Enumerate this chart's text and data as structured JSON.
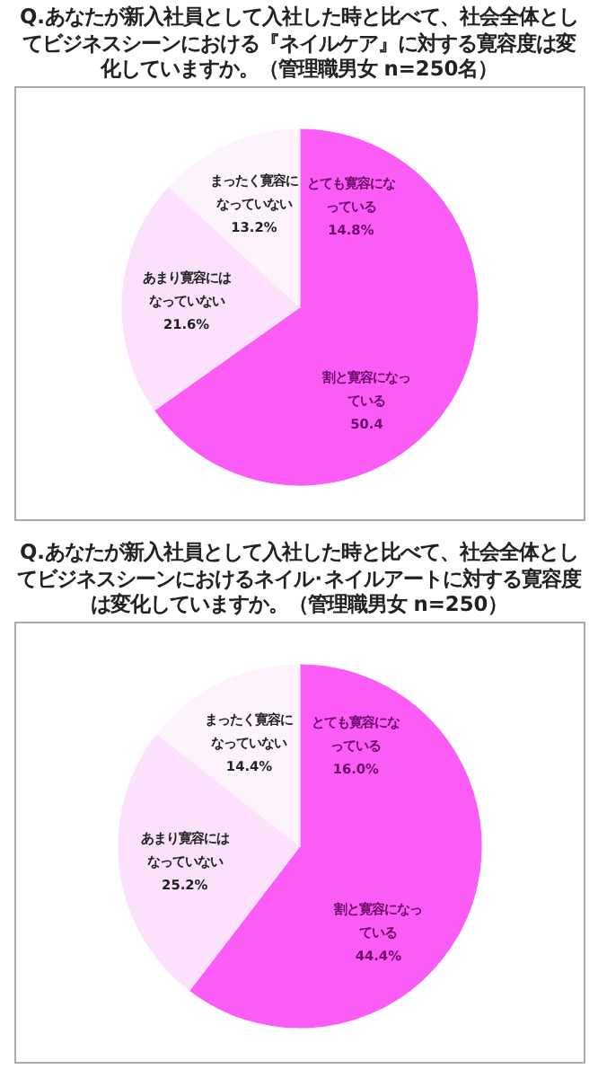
{
  "chart_data": [
    {
      "type": "pie",
      "title": "Q.あなたが新入社員として入社した時と比べて、社会全体としてビジネスシーンにおける『ネイルケア』に対する寛容度は変化していますか。（管理職男女 n=250名）",
      "categories": [
        "とても寛容になっている",
        "割と寛容になっている",
        "あまり寛容にはなっていない",
        "まったく寛容になっていない"
      ],
      "values": [
        14.8,
        50.4,
        21.6,
        13.2
      ],
      "value_labels": [
        "14.8%",
        "50.4",
        "21.6%",
        "13.2%"
      ],
      "colors": [
        "#fa5cf5",
        "#fa5cf5",
        "#fbe1fb",
        "#fdf3fd"
      ]
    },
    {
      "type": "pie",
      "title": "Q.あなたが新入社員として入社した時と比べて、社会全体としてビジネスシーンにおけるネイル･ネイルアートに対する寛容度は変化していますか。（管理職男女 n=250）",
      "categories": [
        "とても寛容になっている",
        "割と寛容になっている",
        "あまり寛容にはなっていない",
        "まったく寛容になっていない"
      ],
      "values": [
        16.0,
        44.4,
        25.2,
        14.4
      ],
      "value_labels": [
        "16.0%",
        "44.4%",
        "25.2%",
        "14.4%"
      ],
      "colors": [
        "#fa5cf5",
        "#fa5cf5",
        "#fbe1fb",
        "#fdf3fd"
      ]
    }
  ]
}
